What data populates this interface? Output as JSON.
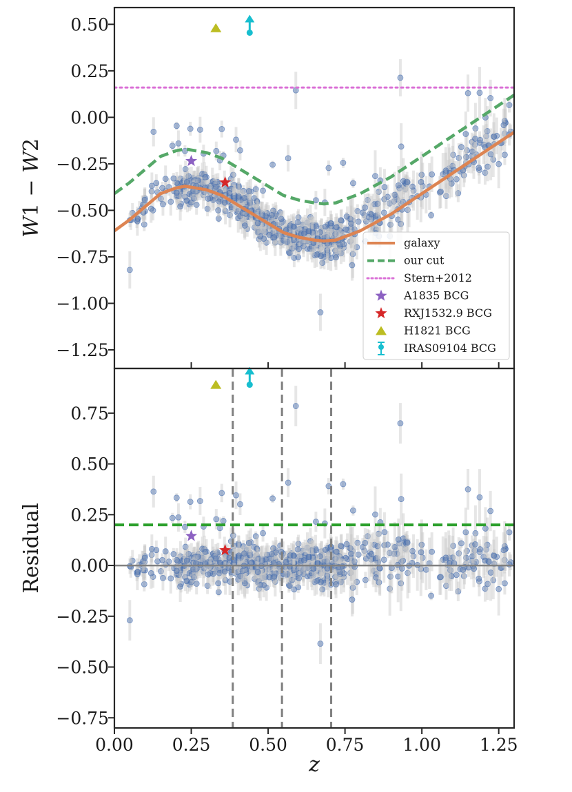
{
  "chart_data": [
    {
      "panel": "top",
      "type": "scatter",
      "title": "",
      "xlabel": "",
      "ylabel": "W1 − W2",
      "ylabel_parts": {
        "a": "W",
        "a_sub": "1",
        "op": " − ",
        "b": "W",
        "b_sub": "2"
      },
      "xlim": [
        0.0,
        1.3
      ],
      "ylim": [
        -1.35,
        0.59
      ],
      "yticks": [
        0.5,
        0.25,
        0.0,
        -0.25,
        -0.5,
        -0.75,
        -1.0,
        -1.25
      ],
      "ytick_labels": [
        "0.50",
        "0.25",
        "0.00",
        "−0.25",
        "−0.50",
        "−0.75",
        "−1.00",
        "−1.25"
      ],
      "lines": [
        {
          "name": "galaxy",
          "color": "#dd8452",
          "style": "solid",
          "x": [
            0.0,
            0.05,
            0.1,
            0.15,
            0.2,
            0.23,
            0.3,
            0.35,
            0.4,
            0.45,
            0.5,
            0.55,
            0.6,
            0.65,
            0.68,
            0.72,
            0.8,
            0.9,
            1.0,
            1.1,
            1.2,
            1.3
          ],
          "y": [
            -0.61,
            -0.55,
            -0.48,
            -0.41,
            -0.38,
            -0.37,
            -0.39,
            -0.42,
            -0.47,
            -0.52,
            -0.57,
            -0.62,
            -0.645,
            -0.66,
            -0.665,
            -0.66,
            -0.61,
            -0.52,
            -0.41,
            -0.3,
            -0.19,
            -0.08
          ]
        },
        {
          "name": "our cut",
          "color": "#55a868",
          "style": "dashed",
          "x": [
            0.0,
            0.05,
            0.1,
            0.15,
            0.2,
            0.23,
            0.3,
            0.35,
            0.4,
            0.45,
            0.5,
            0.55,
            0.6,
            0.65,
            0.68,
            0.72,
            0.8,
            0.9,
            1.0,
            1.1,
            1.2,
            1.3
          ],
          "y": [
            -0.41,
            -0.35,
            -0.28,
            -0.21,
            -0.18,
            -0.17,
            -0.19,
            -0.22,
            -0.27,
            -0.32,
            -0.37,
            -0.42,
            -0.445,
            -0.46,
            -0.465,
            -0.46,
            -0.41,
            -0.32,
            -0.21,
            -0.1,
            0.01,
            0.12
          ]
        },
        {
          "name": "Stern+2012",
          "color": "#da70d6",
          "style": "dotted",
          "x": [
            0.0,
            1.3
          ],
          "y": [
            0.16,
            0.16
          ]
        }
      ],
      "markers": [
        {
          "name": "A1835 BCG",
          "symbol": "star",
          "color": "#8c61c2",
          "x": 0.25,
          "y": -0.235
        },
        {
          "name": "RXJ1532.9 BCG",
          "symbol": "star",
          "color": "#d62728",
          "x": 0.36,
          "y": -0.35
        },
        {
          "name": "H1821 BCG",
          "symbol": "triangle",
          "color": "#bcbd22",
          "x": 0.33,
          "y": 0.48
        },
        {
          "name": "IRAS09104 BCG",
          "symbol": "lower-limit",
          "color": "#17becf",
          "x": 0.44,
          "y": 0.455
        }
      ],
      "scatter_series": {
        "name": "clusters",
        "color": "#4c72b0",
        "n_points": 720,
        "notable_points": [
          {
            "x": 0.05,
            "y": -0.82
          },
          {
            "x": 0.06,
            "y": -0.64
          },
          {
            "x": 0.93,
            "y": 0.21
          },
          {
            "x": 0.59,
            "y": 0.16
          },
          {
            "x": 0.67,
            "y": -1.05
          },
          {
            "x": 1.15,
            "y": 0.14
          }
        ]
      },
      "legend": {
        "position": "lower-right",
        "entries": [
          "galaxy",
          "our cut",
          "Stern+2012",
          "A1835 BCG",
          "RXJ1532.9 BCG",
          "H1821 BCG",
          "IRAS09104 BCG"
        ]
      }
    },
    {
      "panel": "bottom",
      "type": "scatter",
      "title": "",
      "xlabel": "z",
      "ylabel": "Residual",
      "xlim": [
        0.0,
        1.3
      ],
      "ylim": [
        -0.8,
        0.97
      ],
      "xticks": [
        0.0,
        0.25,
        0.5,
        0.75,
        1.0,
        1.25
      ],
      "xtick_labels": [
        "0.00",
        "0.25",
        "0.50",
        "0.75",
        "1.00",
        "1.25"
      ],
      "yticks": [
        0.75,
        0.5,
        0.25,
        0.0,
        -0.25,
        -0.5,
        -0.75
      ],
      "ytick_labels": [
        "0.75",
        "0.50",
        "0.25",
        "0.00",
        "−0.25",
        "−0.50",
        "−0.75"
      ],
      "hlines": [
        {
          "name": "zero",
          "y": 0.0,
          "color": "#808080",
          "style": "solid"
        },
        {
          "name": "residual cut",
          "y": 0.2,
          "color": "#2ca02c",
          "style": "dashed"
        }
      ],
      "vlines": [
        {
          "x": 0.385,
          "color": "#808080",
          "style": "dashed"
        },
        {
          "x": 0.545,
          "color": "#808080",
          "style": "dashed"
        },
        {
          "x": 0.705,
          "color": "#808080",
          "style": "dashed"
        }
      ],
      "markers": [
        {
          "name": "A1835 BCG",
          "symbol": "star",
          "color": "#8c61c2",
          "x": 0.25,
          "y": 0.145
        },
        {
          "name": "RXJ1532.9 BCG",
          "symbol": "star",
          "color": "#d62728",
          "x": 0.36,
          "y": 0.075
        },
        {
          "name": "H1821 BCG",
          "symbol": "triangle",
          "color": "#bcbd22",
          "x": 0.33,
          "y": 0.89
        },
        {
          "name": "IRAS09104 BCG",
          "symbol": "lower-limit",
          "color": "#17becf",
          "x": 0.44,
          "y": 0.89
        }
      ],
      "scatter_series": {
        "name": "clusters",
        "color": "#4c72b0",
        "n_points": 720,
        "notable_points": [
          {
            "x": 0.59,
            "y": 0.785
          },
          {
            "x": 0.93,
            "y": 0.7
          },
          {
            "x": 0.67,
            "y": -0.385
          },
          {
            "x": 0.05,
            "y": -0.27
          },
          {
            "x": 1.15,
            "y": 0.375
          }
        ]
      }
    }
  ]
}
